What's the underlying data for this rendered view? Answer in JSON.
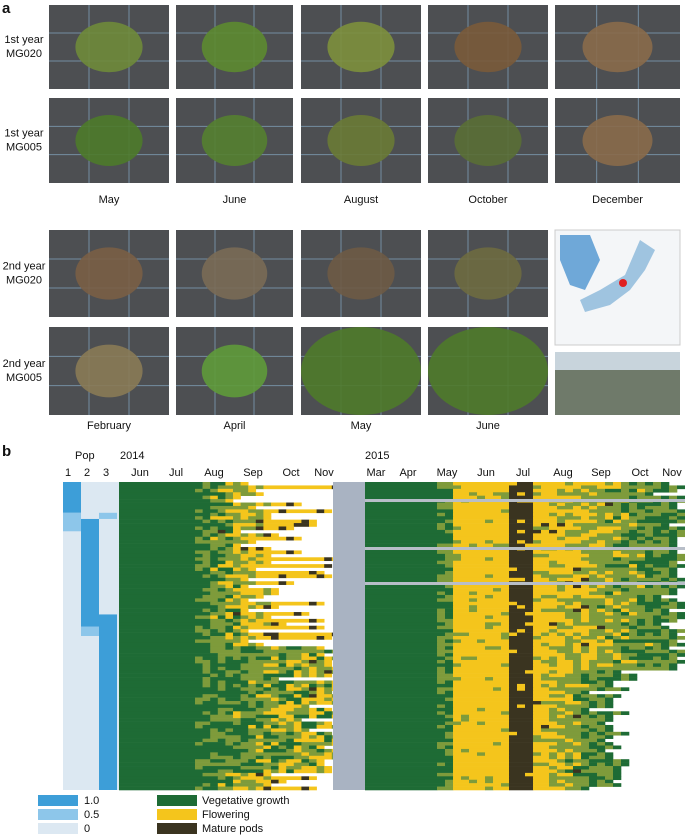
{
  "panel_a": {
    "label": "a",
    "row_labels": [
      [
        "1st year",
        "MG020"
      ],
      [
        "1st year",
        "MG005"
      ],
      [
        "2nd year",
        "MG020"
      ],
      [
        "2nd year",
        "MG005"
      ]
    ],
    "months_1": [
      "May",
      "June",
      "August",
      "October",
      "December"
    ],
    "months_2": [
      "February",
      "April",
      "May",
      "June"
    ]
  },
  "panel_b": {
    "label": "b",
    "pop_title": "Pop",
    "pop_columns": [
      "1",
      "2",
      "3"
    ],
    "year_1": "2014",
    "months_1": [
      "Jun",
      "Jul",
      "Aug",
      "Sep",
      "Oct",
      "Nov"
    ],
    "year_2": "2015",
    "months_2": [
      "Mar",
      "Apr",
      "May",
      "Jun",
      "Jul",
      "Aug",
      "Sep",
      "Oct",
      "Nov"
    ],
    "legend_scale": [
      "1.0",
      "0.5",
      "0"
    ],
    "legend_states": [
      "Vegetative growth",
      "Flowering",
      "Mature pods"
    ]
  }
}
